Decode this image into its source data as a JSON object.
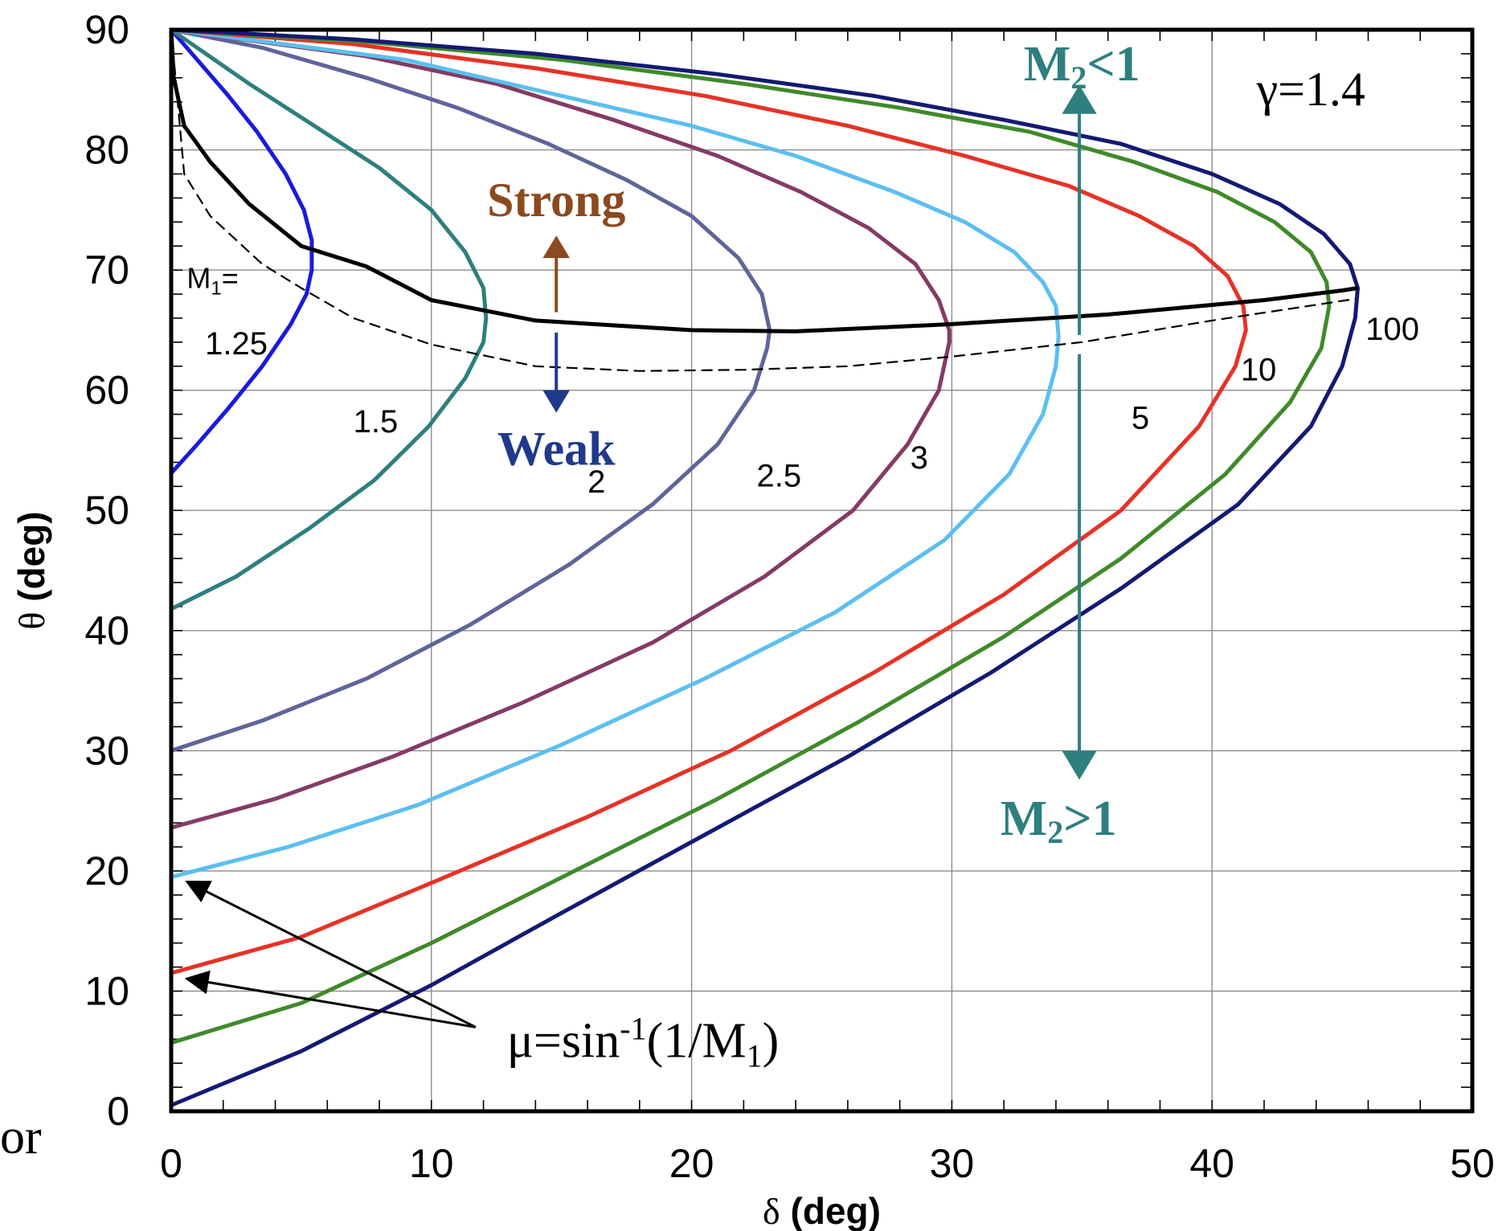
{
  "chart_data": {
    "type": "line",
    "xlabel_symbol": "δ",
    "xlabel_unit": "(deg)",
    "ylabel_symbol": "θ",
    "ylabel_unit": "(deg)",
    "xlim": [
      0,
      50
    ],
    "ylim": [
      0,
      90
    ],
    "x_ticks": [
      "0",
      "10",
      "20",
      "30",
      "40",
      "50"
    ],
    "y_ticks": [
      "0",
      "10",
      "20",
      "30",
      "40",
      "50",
      "60",
      "70",
      "80",
      "90"
    ],
    "grid": true,
    "series": [
      {
        "name": "1.25",
        "color": "#1a1adc",
        "points": [
          [
            0,
            53.1
          ],
          [
            1,
            55.5
          ],
          [
            2.2,
            58.5
          ],
          [
            3.5,
            62
          ],
          [
            4.6,
            65.5
          ],
          [
            5.2,
            68
          ],
          [
            5.4,
            70
          ],
          [
            5.4,
            72.5
          ],
          [
            5.1,
            75
          ],
          [
            4.4,
            78
          ],
          [
            3.3,
            81.5
          ],
          [
            2.2,
            84.5
          ],
          [
            1,
            87.5
          ],
          [
            0,
            90
          ]
        ]
      },
      {
        "name": "1.5",
        "color": "#2e7f7f",
        "points": [
          [
            0,
            41.8
          ],
          [
            2.5,
            44.5
          ],
          [
            5.3,
            48.5
          ],
          [
            7.8,
            52.5
          ],
          [
            9.9,
            57
          ],
          [
            11.3,
            61
          ],
          [
            12,
            64
          ],
          [
            12.1,
            66
          ],
          [
            12,
            68.5
          ],
          [
            11.3,
            71.5
          ],
          [
            10,
            75
          ],
          [
            8,
            78.5
          ],
          [
            5.5,
            82
          ],
          [
            3,
            85.5
          ],
          [
            0,
            90
          ]
        ]
      },
      {
        "name": "2",
        "color": "#5f649a",
        "points": [
          [
            0,
            30
          ],
          [
            3.5,
            32.5
          ],
          [
            7.5,
            36
          ],
          [
            11.5,
            40.5
          ],
          [
            15.3,
            45.5
          ],
          [
            18.5,
            50.5
          ],
          [
            21,
            55.5
          ],
          [
            22.4,
            60
          ],
          [
            22.9,
            63.5
          ],
          [
            23,
            65
          ],
          [
            22.7,
            68
          ],
          [
            21.8,
            71
          ],
          [
            20,
            74.5
          ],
          [
            17.5,
            77.5
          ],
          [
            14.5,
            80.5
          ],
          [
            11,
            83.5
          ],
          [
            7.5,
            86
          ],
          [
            3.5,
            88.5
          ],
          [
            0,
            90
          ]
        ]
      },
      {
        "name": "2.5",
        "color": "#843b66",
        "points": [
          [
            0,
            23.6
          ],
          [
            4,
            26
          ],
          [
            8.5,
            29.5
          ],
          [
            13.5,
            34
          ],
          [
            18.5,
            39
          ],
          [
            22.8,
            44.5
          ],
          [
            26.2,
            50
          ],
          [
            28.3,
            55.5
          ],
          [
            29.5,
            60
          ],
          [
            29.9,
            64
          ],
          [
            29.9,
            65
          ],
          [
            29.5,
            67.5
          ],
          [
            28.6,
            70.5
          ],
          [
            26.8,
            73.5
          ],
          [
            24.2,
            76.5
          ],
          [
            21,
            79.5
          ],
          [
            17,
            82.5
          ],
          [
            12.5,
            85.5
          ],
          [
            7.5,
            87.8
          ],
          [
            0,
            90
          ]
        ]
      },
      {
        "name": "3",
        "color": "#5bbff0",
        "points": [
          [
            0,
            19.5
          ],
          [
            4.5,
            22
          ],
          [
            9.5,
            25.5
          ],
          [
            15,
            30.5
          ],
          [
            20.5,
            36
          ],
          [
            25.5,
            41.5
          ],
          [
            29.7,
            47.5
          ],
          [
            32.2,
            53
          ],
          [
            33.5,
            58
          ],
          [
            34,
            62
          ],
          [
            34.1,
            64.5
          ],
          [
            34,
            67
          ],
          [
            33.5,
            69
          ],
          [
            32.4,
            71.5
          ],
          [
            30.5,
            74
          ],
          [
            27.8,
            76.5
          ],
          [
            24,
            79.5
          ],
          [
            20,
            82
          ],
          [
            15,
            84.5
          ],
          [
            9,
            87.5
          ],
          [
            0,
            90
          ]
        ]
      },
      {
        "name": "5",
        "color": "#e63226",
        "points": [
          [
            0,
            11.5
          ],
          [
            5,
            14.5
          ],
          [
            10,
            19
          ],
          [
            16,
            24.5
          ],
          [
            21.5,
            30
          ],
          [
            27,
            36.5
          ],
          [
            32,
            43
          ],
          [
            36.5,
            50
          ],
          [
            39.5,
            57
          ],
          [
            40.9,
            62
          ],
          [
            41.3,
            65
          ],
          [
            41.2,
            67
          ],
          [
            40.6,
            69.5
          ],
          [
            39.3,
            72
          ],
          [
            37.2,
            74.5
          ],
          [
            34.5,
            77
          ],
          [
            30.5,
            79.5
          ],
          [
            26,
            82
          ],
          [
            20.5,
            84.5
          ],
          [
            14,
            86.8
          ],
          [
            7,
            88.8
          ],
          [
            0,
            90
          ]
        ]
      },
      {
        "name": "10",
        "color": "#3f8a2a",
        "points": [
          [
            0,
            5.7
          ],
          [
            5,
            9
          ],
          [
            10,
            14
          ],
          [
            15.5,
            20
          ],
          [
            21,
            26
          ],
          [
            26.5,
            32.5
          ],
          [
            32,
            39.5
          ],
          [
            36.5,
            46
          ],
          [
            40.5,
            53
          ],
          [
            43,
            59
          ],
          [
            44.2,
            63.5
          ],
          [
            44.5,
            67
          ],
          [
            44.4,
            69
          ],
          [
            43.8,
            71.5
          ],
          [
            42.4,
            74
          ],
          [
            40.2,
            76.5
          ],
          [
            37,
            79
          ],
          [
            33,
            81.5
          ],
          [
            28,
            83.5
          ],
          [
            22,
            85.5
          ],
          [
            15,
            87.5
          ],
          [
            7.5,
            89
          ],
          [
            0,
            90
          ]
        ]
      },
      {
        "name": "100",
        "color": "#141a73",
        "points": [
          [
            0,
            0.5
          ],
          [
            5,
            5
          ],
          [
            10,
            10.5
          ],
          [
            15,
            16.5
          ],
          [
            20.5,
            23
          ],
          [
            26,
            29.5
          ],
          [
            31.5,
            36.5
          ],
          [
            36.5,
            43.5
          ],
          [
            41,
            50.5
          ],
          [
            43.8,
            57
          ],
          [
            45,
            62
          ],
          [
            45.5,
            66
          ],
          [
            45.6,
            68.5
          ],
          [
            45.3,
            70.5
          ],
          [
            44.3,
            73
          ],
          [
            42.6,
            75.5
          ],
          [
            40,
            78
          ],
          [
            36.5,
            80.5
          ],
          [
            32,
            82.5
          ],
          [
            27,
            84.5
          ],
          [
            21,
            86.3
          ],
          [
            14,
            88
          ],
          [
            7,
            89.2
          ],
          [
            0,
            90
          ]
        ]
      }
    ],
    "max_deflection_line": {
      "color": "#000000",
      "points": [
        [
          0,
          90
        ],
        [
          0.1,
          86
        ],
        [
          0.5,
          82
        ],
        [
          1.5,
          79
        ],
        [
          3,
          75.5
        ],
        [
          5,
          72
        ],
        [
          7.5,
          70.3
        ],
        [
          10,
          67.5
        ],
        [
          14,
          65.8
        ],
        [
          20,
          65
        ],
        [
          24,
          64.9
        ],
        [
          30,
          65.5
        ],
        [
          36,
          66.3
        ],
        [
          42,
          67.5
        ],
        [
          45,
          68.3
        ],
        [
          45.6,
          68.5
        ]
      ]
    },
    "sonic_line": {
      "color": "#000000",
      "dash": true,
      "points": [
        [
          0,
          90
        ],
        [
          0.5,
          78
        ],
        [
          1.5,
          74.5
        ],
        [
          3.5,
          70.5
        ],
        [
          5,
          68.5
        ],
        [
          7,
          66
        ],
        [
          10,
          63.8
        ],
        [
          14,
          62
        ],
        [
          18,
          61.6
        ],
        [
          22,
          61.7
        ],
        [
          26,
          62
        ],
        [
          30,
          62.8
        ],
        [
          35,
          64
        ],
        [
          40,
          65.8
        ],
        [
          45.5,
          67.6
        ]
      ]
    },
    "curve_labels": {
      "m1_prefix": "M",
      "m1_sub": "1",
      "m1_eq": "=",
      "l125": "1.25",
      "l15": "1.5",
      "l2": "2",
      "l25": "2.5",
      "l3": "3",
      "l5": "5",
      "l10": "10",
      "l100": "100"
    },
    "annotations": {
      "strong": "Strong",
      "weak": "Weak",
      "strong_color": "#8b4a1f",
      "weak_color": "#1f3a8c",
      "m2_color": "#2e7f7f",
      "m2_prefix": "M",
      "m2_sub": "2",
      "m2_subsonic_rel": "<1",
      "m2_supersonic_rel": ">1",
      "gamma": "γ=1.4",
      "mu_prefix": "μ=sin",
      "mu_sup": "-1",
      "mu_mid": "(1/M",
      "mu_sub": "1",
      "mu_suffix": ")"
    }
  },
  "stray_text": "or"
}
